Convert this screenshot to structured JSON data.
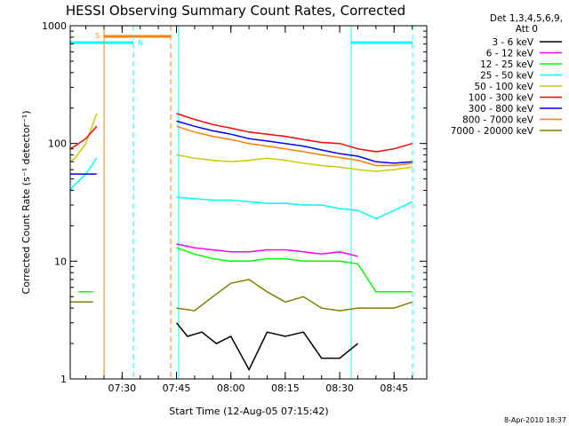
{
  "chart_data": {
    "type": "line",
    "title": "HESSI Observing Summary Count Rates, Corrected",
    "xlabel": "Start Time (12-Aug-05 07:15:42)",
    "ylabel": "Corrected Count Rate (s⁻¹ detector⁻¹)",
    "x_ticks": [
      "07:30",
      "07:45",
      "08:00",
      "08:15",
      "08:30",
      "08:45"
    ],
    "y_ticks": [
      "1",
      "10",
      "100",
      "1000"
    ],
    "ylim": [
      1,
      1000
    ],
    "yscale": "log",
    "xlim": [
      "07:15:42",
      "08:54:00"
    ],
    "legend": {
      "position": "right",
      "header": [
        "Det 1,3,4,5,6,9,",
        "Att 0"
      ],
      "entries": [
        {
          "label": "3 - 6 keV",
          "color": "#000000"
        },
        {
          "label": "6 - 12 keV",
          "color": "#ff00ff"
        },
        {
          "label": "12 - 25 keV",
          "color": "#00ff00"
        },
        {
          "label": "25 - 50 keV",
          "color": "#00ffff"
        },
        {
          "label": "50 - 100 keV",
          "color": "#cccc00"
        },
        {
          "label": "100 - 300 keV",
          "color": "#ff0000"
        },
        {
          "label": "300 - 800 keV",
          "color": "#0000ff"
        },
        {
          "label": "800 - 7000 keV",
          "color": "#ff8000"
        },
        {
          "label": "7000 - 20000 keV",
          "color": "#808000"
        }
      ]
    },
    "series": [
      {
        "name": "3 - 6 keV",
        "color": "#000000",
        "x": [
          "07:45:00",
          "07:48:00",
          "07:52:00",
          "07:56:00",
          "08:00:00",
          "08:05:00",
          "08:10:00",
          "08:15:00",
          "08:20:00",
          "08:25:00",
          "08:30:00",
          "08:35:00"
        ],
        "y": [
          3.0,
          2.3,
          2.5,
          2.0,
          2.3,
          1.2,
          2.5,
          2.3,
          2.5,
          1.5,
          1.5,
          2.0
        ]
      },
      {
        "name": "6 - 12 keV",
        "color": "#ff00ff",
        "x": [
          "07:45:00",
          "07:50:00",
          "07:55:00",
          "08:00:00",
          "08:05:00",
          "08:10:00",
          "08:15:00",
          "08:20:00",
          "08:25:00",
          "08:30:00",
          "08:35:00"
        ],
        "y": [
          14,
          13,
          12.5,
          12,
          12,
          12.5,
          12.5,
          12,
          11.5,
          12,
          11
        ]
      },
      {
        "name": "12 - 25 keV",
        "color": "#00ff00",
        "x": [
          "07:18:00",
          "07:22:00",
          "07:45:00",
          "07:50:00",
          "07:55:00",
          "08:00:00",
          "08:05:00",
          "08:10:00",
          "08:15:00",
          "08:20:00",
          "08:25:00",
          "08:30:00",
          "08:35:00",
          "08:40:00",
          "08:45:00",
          "08:50:00"
        ],
        "y": [
          5.5,
          5.5,
          13,
          11.5,
          10.5,
          10,
          10,
          10.5,
          10.5,
          10,
          10,
          10,
          9.5,
          5.5,
          5.5,
          5.5
        ]
      },
      {
        "name": "25 - 50 keV",
        "color": "#00ffff",
        "x": [
          "07:15:42",
          "07:17:00",
          "07:20:00",
          "07:23:00",
          "07:45:00",
          "07:50:00",
          "07:55:00",
          "08:00:00",
          "08:05:00",
          "08:10:00",
          "08:15:00",
          "08:20:00",
          "08:25:00",
          "08:30:00",
          "08:35:00",
          "08:40:00",
          "08:45:00",
          "08:50:00"
        ],
        "y": [
          40,
          45,
          55,
          75,
          35,
          34,
          33,
          33,
          32,
          31,
          31,
          30,
          30,
          28,
          27,
          23,
          27,
          32
        ]
      },
      {
        "name": "50 - 100 keV",
        "color": "#cccc00",
        "x": [
          "07:15:42",
          "07:17:00",
          "07:20:00",
          "07:23:00",
          "07:45:00",
          "07:50:00",
          "07:55:00",
          "08:00:00",
          "08:05:00",
          "08:10:00",
          "08:15:00",
          "08:20:00",
          "08:25:00",
          "08:30:00",
          "08:35:00",
          "08:40:00",
          "08:45:00",
          "08:50:00"
        ],
        "y": [
          70,
          75,
          100,
          180,
          80,
          75,
          72,
          70,
          72,
          75,
          72,
          68,
          65,
          63,
          60,
          58,
          60,
          63
        ]
      },
      {
        "name": "100 - 300 keV",
        "color": "#ff0000",
        "x": [
          "07:15:42",
          "07:17:00",
          "07:20:00",
          "07:23:00",
          "07:45:00",
          "07:50:00",
          "07:55:00",
          "08:00:00",
          "08:05:00",
          "08:10:00",
          "08:15:00",
          "08:20:00",
          "08:25:00",
          "08:30:00",
          "08:35:00",
          "08:40:00",
          "08:45:00",
          "08:50:00"
        ],
        "y": [
          90,
          95,
          110,
          140,
          180,
          160,
          145,
          135,
          125,
          120,
          115,
          108,
          102,
          100,
          90,
          85,
          90,
          100
        ]
      },
      {
        "name": "300 - 800 keV",
        "color": "#0000ff",
        "x": [
          "07:15:42",
          "07:23:00",
          "07:45:00",
          "07:50:00",
          "07:55:00",
          "08:00:00",
          "08:05:00",
          "08:10:00",
          "08:15:00",
          "08:20:00",
          "08:25:00",
          "08:30:00",
          "08:35:00",
          "08:40:00",
          "08:45:00",
          "08:50:00"
        ],
        "y": [
          55,
          55,
          155,
          140,
          128,
          120,
          110,
          105,
          100,
          95,
          88,
          82,
          78,
          70,
          68,
          70
        ]
      },
      {
        "name": "800 - 7000 keV",
        "color": "#ff8000",
        "x": [
          "07:45:00",
          "07:50:00",
          "07:55:00",
          "08:00:00",
          "08:05:00",
          "08:10:00",
          "08:15:00",
          "08:20:00",
          "08:25:00",
          "08:30:00",
          "08:35:00",
          "08:40:00",
          "08:45:00",
          "08:50:00"
        ],
        "y": [
          140,
          125,
          115,
          108,
          100,
          95,
          90,
          85,
          80,
          76,
          72,
          65,
          65,
          68
        ]
      },
      {
        "name": "7000 - 20000 keV",
        "color": "#808000",
        "x": [
          "07:15:42",
          "07:22:00",
          "07:45:00",
          "07:50:00",
          "07:55:00",
          "08:00:00",
          "08:05:00",
          "08:10:00",
          "08:15:00",
          "08:20:00",
          "08:25:00",
          "08:30:00",
          "08:35:00",
          "08:40:00",
          "08:45:00",
          "08:50:00"
        ],
        "y": [
          4.5,
          4.5,
          4.0,
          3.8,
          5.0,
          6.5,
          7.0,
          5.5,
          4.5,
          5.0,
          4.0,
          3.8,
          4.0,
          4.0,
          4.0,
          4.5
        ]
      }
    ],
    "markers": [
      {
        "label": "S",
        "color": "#ff8000"
      },
      {
        "label": "N",
        "color": "#00ffff"
      }
    ]
  },
  "footer": {
    "timestamp": "8-Apr-2010 18:37"
  }
}
